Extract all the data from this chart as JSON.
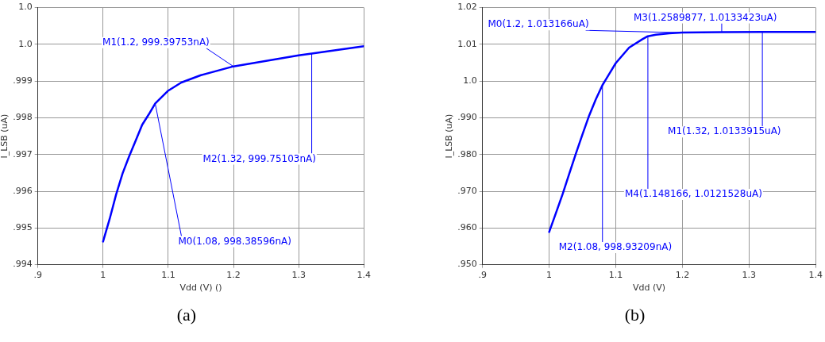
{
  "chart_data": [
    {
      "type": "line",
      "xlabel": "Vdd (V) ()",
      "ylabel": "I_LSB (uA)",
      "xlim": [
        0.9,
        1.4
      ],
      "xticks": [
        {
          "value": 0.9,
          "label": ".9"
        },
        1.0,
        1.1,
        1.2,
        1.3,
        1.4
      ],
      "ylim": [
        0.994,
        1.001
      ],
      "yticks": [
        {
          "value": 0.994,
          "label": ".994"
        },
        {
          "value": 0.995,
          "label": ".995"
        },
        {
          "value": 0.996,
          "label": ".996"
        },
        {
          "value": 0.997,
          "label": ".997"
        },
        {
          "value": 0.998,
          "label": ".998"
        },
        {
          "value": 0.999,
          "label": ".999"
        },
        {
          "value": 1.0,
          "label": "1.0"
        },
        {
          "value": 1.001,
          "label": "1.0"
        }
      ],
      "grid": true,
      "marker": "none",
      "line_style": "solid",
      "series": [
        {
          "color": "#0000ff",
          "x": [
            1.0,
            1.01,
            1.02,
            1.03,
            1.04,
            1.05,
            1.06,
            1.07,
            1.08,
            1.1,
            1.12,
            1.15,
            1.2,
            1.3,
            1.32,
            1.4
          ],
          "values": [
            0.99463,
            0.99524,
            0.99591,
            0.99649,
            0.99695,
            0.99738,
            0.99781,
            0.99809,
            0.99839,
            0.99874,
            0.99896,
            0.99916,
            0.9994,
            0.9997,
            0.99975,
            0.99995
          ]
        }
      ],
      "annotations": [
        {
          "text": "M1(1.2, 999.39753nA)",
          "x": 1.2,
          "y": 0.99939753
        },
        {
          "text": "M2(1.32, 999.75103nA)",
          "x": 1.32,
          "y": 0.99975103
        },
        {
          "text": "M0(1.08, 998.38596nA)",
          "x": 1.08,
          "y": 0.99838596
        },
        "(a)"
      ]
    },
    {
      "type": "line",
      "xlabel": "Vdd (V)",
      "ylabel": "I_LSB (uA)",
      "xlim": [
        0.9,
        1.4
      ],
      "xticks": [
        {
          "value": 0.9,
          "label": ".9"
        },
        1.0,
        1.1,
        1.2,
        1.3,
        1.4
      ],
      "ylim": [
        0.95,
        1.02
      ],
      "yticks": [
        {
          "value": 0.95,
          "label": ".950"
        },
        {
          "value": 0.96,
          "label": ".960"
        },
        {
          "value": 0.97,
          "label": ".970"
        },
        {
          "value": 0.98,
          "label": ".980"
        },
        {
          "value": 0.99,
          "label": ".990"
        },
        {
          "value": 1.0,
          "label": "1.0"
        },
        1.01,
        1.02
      ],
      "grid": true,
      "marker": "none",
      "line_style": "solid",
      "series": [
        {
          "color": "#0000ff",
          "x": [
            1.0,
            1.01,
            1.02,
            1.03,
            1.04,
            1.05,
            1.06,
            1.07,
            1.08,
            1.09,
            1.1,
            1.12,
            1.14,
            1.148,
            1.16,
            1.18,
            1.2,
            1.259,
            1.32,
            1.4
          ],
          "values": [
            0.9589,
            0.964,
            0.9691,
            0.9747,
            0.9802,
            0.9855,
            0.9906,
            0.995,
            0.9989,
            1.0019,
            1.0049,
            1.0091,
            1.0114,
            1.0122,
            1.0126,
            1.013,
            1.0132,
            1.0133,
            1.0134,
            1.0134
          ]
        }
      ],
      "annotations": [
        {
          "text": "M0(1.2, 1.013166uA)",
          "x": 1.2,
          "y": 1.013166
        },
        {
          "text": "M3(1.2589877, 1.0133423uA)",
          "x": 1.2589877,
          "y": 1.0133423
        },
        {
          "text": "M1(1.32, 1.0133915uA)",
          "x": 1.32,
          "y": 1.0133915
        },
        {
          "text": "M4(1.148166, 1.0121528uA)",
          "x": 1.148166,
          "y": 1.0121528
        },
        {
          "text": "M2(1.08, 998.93209nA)",
          "x": 1.08,
          "y": 0.99893209
        },
        "(b)"
      ]
    }
  ]
}
